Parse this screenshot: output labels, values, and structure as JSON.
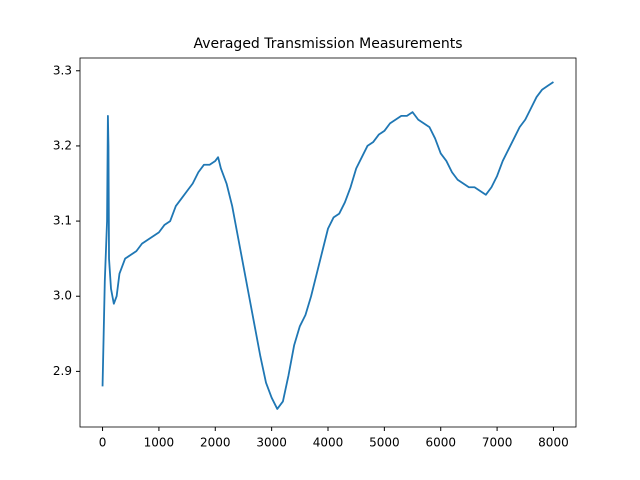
{
  "chart_data": {
    "type": "line",
    "title": "Averaged Transmission Measurements",
    "x": [
      0,
      20,
      40,
      80,
      95,
      105,
      115,
      150,
      200,
      250,
      300,
      400,
      500,
      600,
      700,
      800,
      900,
      1000,
      1100,
      1200,
      1300,
      1400,
      1500,
      1600,
      1700,
      1800,
      1900,
      2000,
      2050,
      2100,
      2200,
      2300,
      2400,
      2500,
      2600,
      2700,
      2800,
      2900,
      3000,
      3100,
      3200,
      3300,
      3400,
      3500,
      3600,
      3700,
      3800,
      3900,
      4000,
      4100,
      4200,
      4300,
      4400,
      4500,
      4600,
      4700,
      4800,
      4900,
      5000,
      5100,
      5200,
      5300,
      5400,
      5500,
      5600,
      5700,
      5800,
      5900,
      6000,
      6100,
      6200,
      6300,
      6400,
      6500,
      6600,
      6700,
      6800,
      6900,
      7000,
      7100,
      7200,
      7300,
      7400,
      7500,
      7600,
      7700,
      7800,
      7900,
      8000
    ],
    "series": [
      {
        "color": "#1f77b4",
        "values": [
          2.88,
          2.95,
          3.02,
          3.1,
          3.24,
          3.2,
          3.05,
          3.01,
          2.99,
          3.0,
          3.03,
          3.05,
          3.055,
          3.06,
          3.07,
          3.075,
          3.08,
          3.085,
          3.095,
          3.1,
          3.12,
          3.13,
          3.14,
          3.15,
          3.165,
          3.175,
          3.175,
          3.18,
          3.185,
          3.17,
          3.15,
          3.12,
          3.08,
          3.04,
          3.0,
          2.96,
          2.92,
          2.885,
          2.865,
          2.85,
          2.86,
          2.895,
          2.935,
          2.96,
          2.975,
          3.0,
          3.03,
          3.06,
          3.09,
          3.105,
          3.11,
          3.125,
          3.145,
          3.17,
          3.185,
          3.2,
          3.205,
          3.215,
          3.22,
          3.23,
          3.235,
          3.24,
          3.24,
          3.245,
          3.235,
          3.23,
          3.225,
          3.21,
          3.19,
          3.18,
          3.165,
          3.155,
          3.15,
          3.145,
          3.145,
          3.14,
          3.135,
          3.145,
          3.16,
          3.18,
          3.195,
          3.21,
          3.225,
          3.235,
          3.25,
          3.265,
          3.275,
          3.28,
          3.285
        ]
      }
    ],
    "xlim": [
      -400,
      8400
    ],
    "xticks": [
      0,
      1000,
      2000,
      3000,
      4000,
      5000,
      6000,
      7000,
      8000
    ],
    "ylim": [
      2.826,
      3.317
    ],
    "yticks": [
      2.9,
      {
        "value": 3,
        "label": "3.0"
      },
      3.1,
      3.2,
      3.3
    ],
    "grid": false
  }
}
